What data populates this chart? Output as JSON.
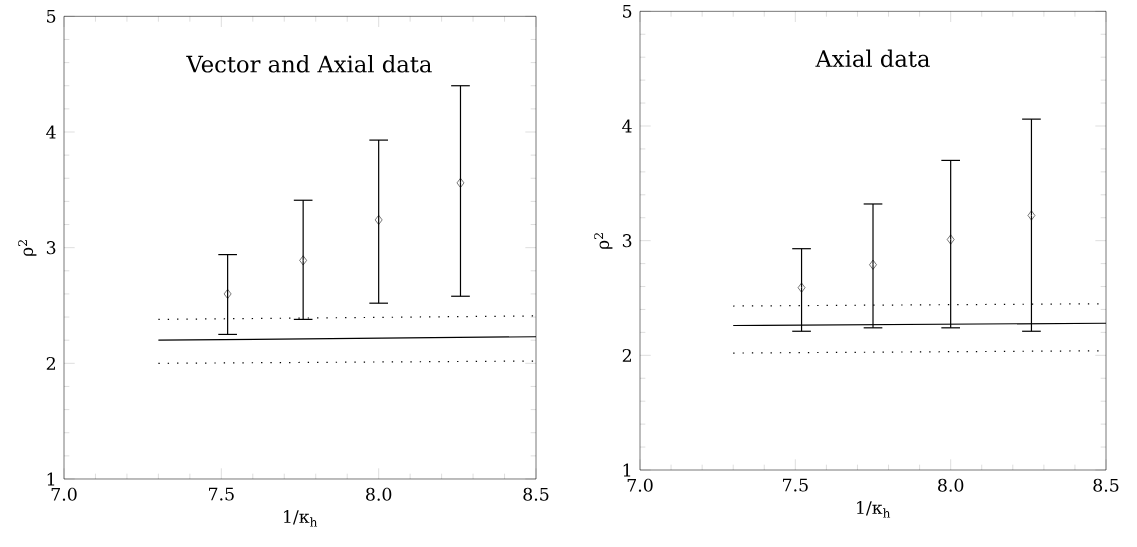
{
  "chart_data": [
    {
      "type": "scatter",
      "title": "Vector and Axial data",
      "xlabel": "1/κ$_{h}$",
      "ylabel": "ρ$^{2}$",
      "xlim": [
        7,
        8.5
      ],
      "ylim": [
        1,
        5
      ],
      "xticks": [
        {
          "value": 7,
          "label": "7.0"
        },
        {
          "value": 7.5,
          "label": "7.5"
        },
        {
          "value": 8,
          "label": "8.0"
        },
        {
          "value": 8.5,
          "label": "8.5"
        }
      ],
      "yticks": [
        1,
        2,
        3,
        4,
        5
      ],
      "series": [
        {
          "marker": "diamond",
          "color": "#000000",
          "x": [
            7.52,
            7.76,
            8.0,
            8.26
          ],
          "values": [
            2.6,
            2.89,
            3.24,
            3.56
          ],
          "errors": [
            [
              2.25,
              2.94
            ],
            [
              2.38,
              3.41
            ],
            [
              2.52,
              3.93
            ],
            [
              2.58,
              4.4
            ]
          ]
        },
        {
          "type": "line",
          "line_style": "solid",
          "marker": "none",
          "color": "#000000",
          "x": [
            7.3,
            8.5
          ],
          "values": [
            2.2,
            2.23
          ]
        },
        {
          "type": "line",
          "line_style": "dotted",
          "marker": "none",
          "color": "#000000",
          "x": [
            7.3,
            8.5
          ],
          "values": [
            2.38,
            2.41
          ]
        },
        {
          "type": "line",
          "line_style": "dotted",
          "marker": "none",
          "color": "#000000",
          "x": [
            7.3,
            8.5
          ],
          "values": [
            2.0,
            2.02
          ]
        }
      ]
    },
    {
      "type": "scatter",
      "title": "Axial data",
      "xlabel": "1/κ$_{h}$",
      "ylabel": "ρ$^{2}$",
      "xlim": [
        7,
        8.5
      ],
      "ylim": [
        1,
        5
      ],
      "xticks": [
        {
          "value": 7,
          "label": "7.0"
        },
        {
          "value": 7.5,
          "label": "7.5"
        },
        {
          "value": 8,
          "label": "8.0"
        },
        {
          "value": 8.5,
          "label": "8.5"
        }
      ],
      "yticks": [
        1,
        2,
        3,
        4,
        5
      ],
      "series": [
        {
          "marker": "diamond",
          "color": "#000000",
          "x": [
            7.52,
            7.75,
            8.0,
            8.26
          ],
          "values": [
            2.59,
            2.79,
            3.01,
            3.22
          ],
          "errors": [
            [
              2.21,
              2.93
            ],
            [
              2.24,
              3.32
            ],
            [
              2.24,
              3.7
            ],
            [
              2.21,
              4.06
            ]
          ]
        },
        {
          "type": "line",
          "line_style": "solid",
          "marker": "none",
          "color": "#000000",
          "x": [
            7.3,
            8.5
          ],
          "values": [
            2.26,
            2.28
          ]
        },
        {
          "type": "line",
          "line_style": "dotted",
          "marker": "none",
          "color": "#000000",
          "x": [
            7.3,
            8.5
          ],
          "values": [
            2.43,
            2.45
          ]
        },
        {
          "type": "line",
          "line_style": "dotted",
          "marker": "none",
          "color": "#000000",
          "x": [
            7.3,
            8.5
          ],
          "values": [
            2.02,
            2.04
          ]
        }
      ]
    }
  ]
}
